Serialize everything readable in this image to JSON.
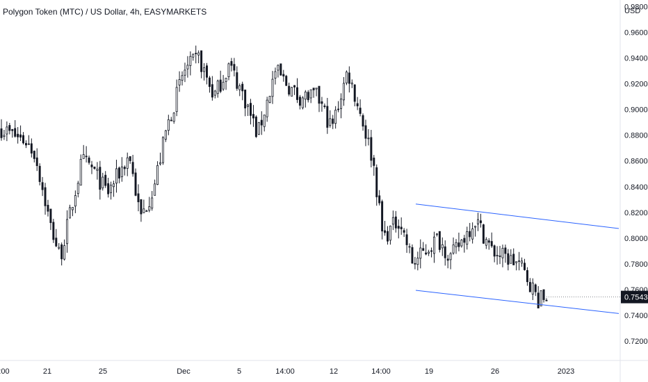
{
  "chart_data": {
    "type": "candlestick",
    "title": "Polygon Token (MTC) / US Dollar, 4h, EASYMARKETS",
    "currency": "USD",
    "ylim": [
      0.705,
      0.985
    ],
    "y_ticks": [
      "0.9800",
      "0.9600",
      "0.9400",
      "0.9200",
      "0.9000",
      "0.8800",
      "0.8600",
      "0.8400",
      "0.8200",
      "0.8000",
      "0.7800",
      "0.7600",
      "0.7400",
      "0.7200"
    ],
    "x_ticks": [
      ":00",
      "21",
      "25",
      "Dec",
      "5",
      "14:00",
      "12",
      "14:00",
      "19",
      "26",
      "2023"
    ],
    "current_price": "0.7543",
    "colors": {
      "candle": "#131722",
      "channel": "#2962ff",
      "price_label_bg": "#131722"
    },
    "channel": {
      "upper": [
        {
          "bar": 0.0,
          "price": 0.8265
        },
        {
          "bar": 1.0,
          "price": 0.8075
        }
      ],
      "lower": [
        {
          "bar": 0.0,
          "price": 0.7595
        },
        {
          "bar": 1.0,
          "price": 0.7415
        }
      ]
    },
    "segments": [
      {
        "from": 0.0,
        "open": 0.885,
        "close": 0.875,
        "lo": 0.87,
        "hi": 0.895
      },
      {
        "from": 0.046,
        "open": 0.875,
        "close": 0.865,
        "lo": 0.855,
        "hi": 0.88
      },
      {
        "from": 0.062,
        "open": 0.865,
        "close": 0.81,
        "lo": 0.8,
        "hi": 0.87
      },
      {
        "from": 0.09,
        "open": 0.81,
        "close": 0.785,
        "lo": 0.765,
        "hi": 0.815
      },
      {
        "from": 0.108,
        "open": 0.785,
        "close": 0.86,
        "lo": 0.775,
        "hi": 0.865
      },
      {
        "from": 0.148,
        "open": 0.86,
        "close": 0.855,
        "lo": 0.84,
        "hi": 0.89
      },
      {
        "from": 0.165,
        "open": 0.855,
        "close": 0.835,
        "lo": 0.825,
        "hi": 0.86
      },
      {
        "from": 0.195,
        "open": 0.835,
        "close": 0.865,
        "lo": 0.83,
        "hi": 0.87
      },
      {
        "from": 0.235,
        "open": 0.865,
        "close": 0.815,
        "lo": 0.805,
        "hi": 0.87
      },
      {
        "from": 0.255,
        "open": 0.815,
        "close": 0.84,
        "lo": 0.805,
        "hi": 0.845
      },
      {
        "from": 0.28,
        "open": 0.84,
        "close": 0.885,
        "lo": 0.835,
        "hi": 0.89
      },
      {
        "from": 0.303,
        "open": 0.885,
        "close": 0.93,
        "lo": 0.88,
        "hi": 0.945
      },
      {
        "from": 0.335,
        "open": 0.93,
        "close": 0.94,
        "lo": 0.9,
        "hi": 0.95
      },
      {
        "from": 0.362,
        "open": 0.94,
        "close": 0.91,
        "lo": 0.9,
        "hi": 0.945
      },
      {
        "from": 0.39,
        "open": 0.91,
        "close": 0.935,
        "lo": 0.905,
        "hi": 0.945
      },
      {
        "from": 0.418,
        "open": 0.935,
        "close": 0.91,
        "lo": 0.905,
        "hi": 0.94
      },
      {
        "from": 0.445,
        "open": 0.91,
        "close": 0.88,
        "lo": 0.872,
        "hi": 0.915
      },
      {
        "from": 0.47,
        "open": 0.88,
        "close": 0.93,
        "lo": 0.875,
        "hi": 0.935
      },
      {
        "from": 0.503,
        "open": 0.93,
        "close": 0.91,
        "lo": 0.905,
        "hi": 0.935
      },
      {
        "from": 0.543,
        "open": 0.91,
        "close": 0.91,
        "lo": 0.9,
        "hi": 0.915
      },
      {
        "from": 0.58,
        "open": 0.91,
        "close": 0.885,
        "lo": 0.872,
        "hi": 0.915
      },
      {
        "from": 0.606,
        "open": 0.885,
        "close": 0.93,
        "lo": 0.88,
        "hi": 0.942
      },
      {
        "from": 0.635,
        "open": 0.93,
        "close": 0.895,
        "lo": 0.89,
        "hi": 0.938
      },
      {
        "from": 0.66,
        "open": 0.895,
        "close": 0.86,
        "lo": 0.855,
        "hi": 0.9
      },
      {
        "from": 0.682,
        "open": 0.86,
        "close": 0.8,
        "lo": 0.785,
        "hi": 0.865
      },
      {
        "from": 0.7,
        "open": 0.8,
        "close": 0.815,
        "lo": 0.795,
        "hi": 0.825
      },
      {
        "from": 0.73,
        "open": 0.815,
        "close": 0.78,
        "lo": 0.76,
        "hi": 0.822
      },
      {
        "from": 0.755,
        "open": 0.78,
        "close": 0.8,
        "lo": 0.775,
        "hi": 0.805
      },
      {
        "from": 0.8,
        "open": 0.8,
        "close": 0.785,
        "lo": 0.775,
        "hi": 0.805
      },
      {
        "from": 0.825,
        "open": 0.785,
        "close": 0.815,
        "lo": 0.78,
        "hi": 0.82
      },
      {
        "from": 0.87,
        "open": 0.815,
        "close": 0.79,
        "lo": 0.785,
        "hi": 0.82
      },
      {
        "from": 0.9,
        "open": 0.79,
        "close": 0.78,
        "lo": 0.775,
        "hi": 0.795
      },
      {
        "from": 0.95,
        "open": 0.78,
        "close": 0.765,
        "lo": 0.76,
        "hi": 0.785
      },
      {
        "from": 0.97,
        "open": 0.765,
        "close": 0.752,
        "lo": 0.748,
        "hi": 0.77
      },
      {
        "from": 0.985,
        "open": 0.752,
        "close": 0.754,
        "lo": 0.75,
        "hi": 0.758
      },
      {
        "from": 1.0,
        "open": 0.754,
        "close": 0.754,
        "lo": 0.75,
        "hi": 0.758
      }
    ]
  }
}
